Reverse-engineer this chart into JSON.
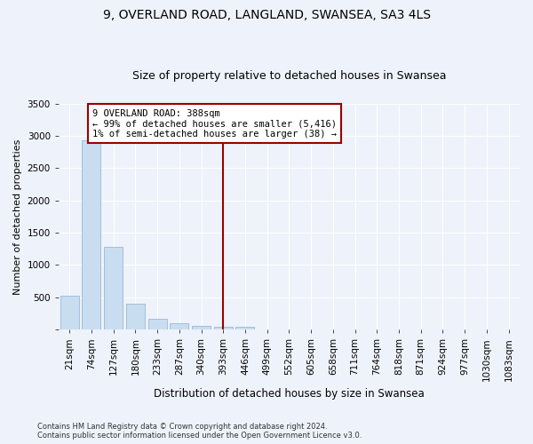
{
  "title1": "9, OVERLAND ROAD, LANGLAND, SWANSEA, SA3 4LS",
  "title2": "Size of property relative to detached houses in Swansea",
  "xlabel": "Distribution of detached houses by size in Swansea",
  "ylabel": "Number of detached properties",
  "footnote": "Contains HM Land Registry data © Crown copyright and database right 2024.\nContains public sector information licensed under the Open Government Licence v3.0.",
  "categories": [
    "21sqm",
    "74sqm",
    "127sqm",
    "180sqm",
    "233sqm",
    "287sqm",
    "340sqm",
    "393sqm",
    "446sqm",
    "499sqm",
    "552sqm",
    "605sqm",
    "658sqm",
    "711sqm",
    "764sqm",
    "818sqm",
    "871sqm",
    "924sqm",
    "977sqm",
    "1030sqm",
    "1083sqm"
  ],
  "values": [
    520,
    2930,
    1280,
    400,
    160,
    90,
    55,
    45,
    40,
    0,
    0,
    0,
    0,
    0,
    0,
    0,
    0,
    0,
    0,
    0,
    0
  ],
  "bar_color": "#c9ddf0",
  "bar_edge_color": "#9ab8d8",
  "vline_index": 7,
  "vline_color": "#990000",
  "annotation_lines": [
    "9 OVERLAND ROAD: 388sqm",
    "← 99% of detached houses are smaller (5,416)",
    "1% of semi-detached houses are larger (38) →"
  ],
  "ylim": [
    0,
    3500
  ],
  "yticks": [
    0,
    500,
    1000,
    1500,
    2000,
    2500,
    3000,
    3500
  ],
  "background_color": "#eef2fa",
  "grid_color": "#ffffff",
  "title1_fontsize": 10,
  "title2_fontsize": 9,
  "xlabel_fontsize": 8.5,
  "ylabel_fontsize": 8,
  "tick_fontsize": 7.5,
  "annotation_fontsize": 7.5,
  "footnote_fontsize": 6
}
